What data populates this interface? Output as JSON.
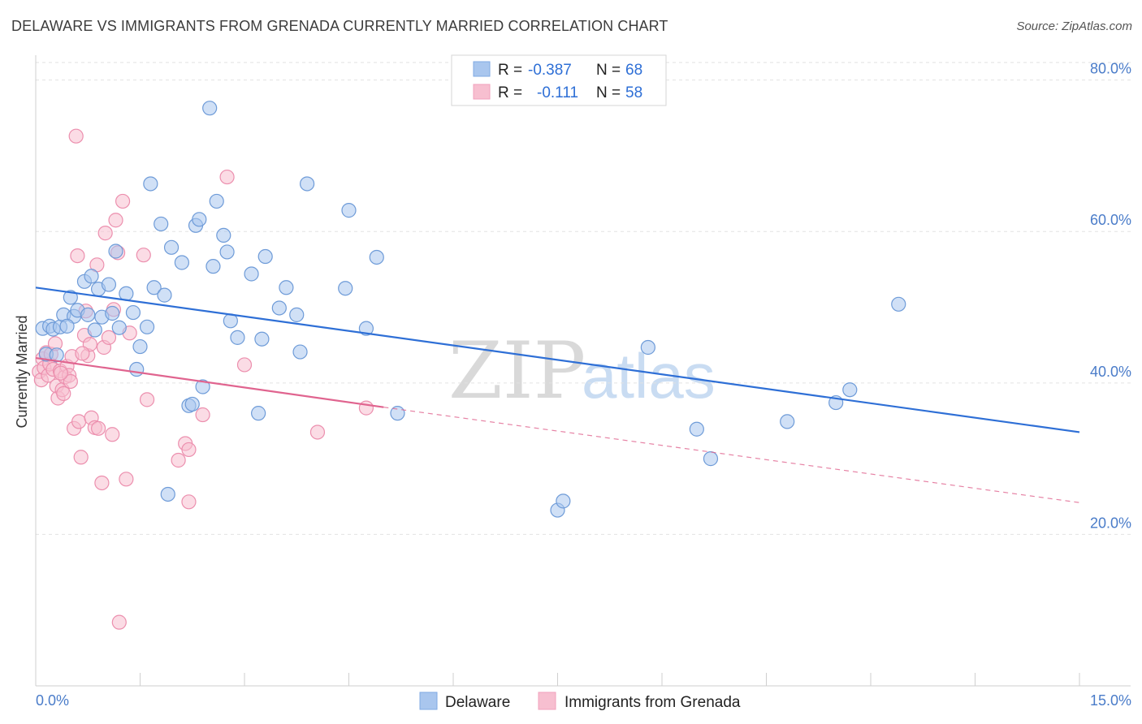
{
  "header": {
    "title": "DELAWARE VS IMMIGRANTS FROM GRENADA CURRENTLY MARRIED CORRELATION CHART",
    "source": "Source: ZipAtlas.com"
  },
  "watermark": {
    "zip": "ZIP",
    "atlas": "atlas"
  },
  "legend": {
    "r_label": "R =",
    "n_label": "N =",
    "rows": [
      {
        "name": "Delaware",
        "r": "-0.387",
        "n": "68",
        "color": "#7fa9e3"
      },
      {
        "name": "Immigrants from Grenada",
        "r": "-0.111",
        "n": "58",
        "color": "#f0a0bc"
      }
    ]
  },
  "colors": {
    "delaware_fill": "#a9c6ee",
    "delaware_stroke": "#6e9bd8",
    "delaware_line": "#2e6fd6",
    "grenada_fill": "#f7bfd0",
    "grenada_stroke": "#ec8fae",
    "grenada_line": "#e0648f",
    "axis_text": "#4a7cc9",
    "grid": "#e2e2e2"
  },
  "chart_data": {
    "type": "scatter",
    "ylabel": "Currently Married",
    "x_tick_labels": [
      "0.0%",
      "15.0%"
    ],
    "y_tick_labels": [
      "20.0%",
      "40.0%",
      "60.0%",
      "80.0%"
    ],
    "y_ticks": [
      20,
      40,
      60,
      80
    ],
    "xlim": [
      0,
      15
    ],
    "ylim": [
      0,
      82
    ],
    "grid": "horizontal dashed",
    "legend_position": "top-center",
    "series": [
      {
        "name": "Delaware",
        "points": [
          [
            0.1,
            47.2
          ],
          [
            0.15,
            43.8
          ],
          [
            0.2,
            47.5
          ],
          [
            0.25,
            47.1
          ],
          [
            0.3,
            43.7
          ],
          [
            0.35,
            47.4
          ],
          [
            0.4,
            49.0
          ],
          [
            0.5,
            51.3
          ],
          [
            0.55,
            48.8
          ],
          [
            0.6,
            49.6
          ],
          [
            0.7,
            53.4
          ],
          [
            0.75,
            49.0
          ],
          [
            0.8,
            54.1
          ],
          [
            0.85,
            47.0
          ],
          [
            0.9,
            52.4
          ],
          [
            0.95,
            48.7
          ],
          [
            1.05,
            53.0
          ],
          [
            1.1,
            49.2
          ],
          [
            1.15,
            57.4
          ],
          [
            1.2,
            47.3
          ],
          [
            1.3,
            51.8
          ],
          [
            1.4,
            49.3
          ],
          [
            1.45,
            41.8
          ],
          [
            1.5,
            44.8
          ],
          [
            1.6,
            47.4
          ],
          [
            1.65,
            66.3
          ],
          [
            1.7,
            52.6
          ],
          [
            1.8,
            61.0
          ],
          [
            1.85,
            51.6
          ],
          [
            1.9,
            25.3
          ],
          [
            1.95,
            57.9
          ],
          [
            2.1,
            55.9
          ],
          [
            2.2,
            37.0
          ],
          [
            2.25,
            37.2
          ],
          [
            2.3,
            60.8
          ],
          [
            2.35,
            61.6
          ],
          [
            2.4,
            39.5
          ],
          [
            2.5,
            76.3
          ],
          [
            2.55,
            55.4
          ],
          [
            2.6,
            64.0
          ],
          [
            2.7,
            59.5
          ],
          [
            2.75,
            57.3
          ],
          [
            2.8,
            48.2
          ],
          [
            2.9,
            46.0
          ],
          [
            3.1,
            54.4
          ],
          [
            3.2,
            36.0
          ],
          [
            3.25,
            45.8
          ],
          [
            3.3,
            56.7
          ],
          [
            3.5,
            49.9
          ],
          [
            3.6,
            52.6
          ],
          [
            3.75,
            49.0
          ],
          [
            3.8,
            44.1
          ],
          [
            3.9,
            66.3
          ],
          [
            4.5,
            62.8
          ],
          [
            4.45,
            52.5
          ],
          [
            4.75,
            47.2
          ],
          [
            4.9,
            56.6
          ],
          [
            5.2,
            36.0
          ],
          [
            7.5,
            23.2
          ],
          [
            7.58,
            24.4
          ],
          [
            8.8,
            44.7
          ],
          [
            9.5,
            33.9
          ],
          [
            9.7,
            30.0
          ],
          [
            10.8,
            34.9
          ],
          [
            11.5,
            37.4
          ],
          [
            11.7,
            39.1
          ],
          [
            12.4,
            50.4
          ],
          [
            0.45,
            47.5
          ]
        ]
      },
      {
        "name": "Immigrants from Grenada",
        "points": [
          [
            0.05,
            41.5
          ],
          [
            0.08,
            40.4
          ],
          [
            0.1,
            43.2
          ],
          [
            0.12,
            42.0
          ],
          [
            0.15,
            44.0
          ],
          [
            0.18,
            41.0
          ],
          [
            0.2,
            42.5
          ],
          [
            0.22,
            43.8
          ],
          [
            0.25,
            41.8
          ],
          [
            0.28,
            45.2
          ],
          [
            0.3,
            39.6
          ],
          [
            0.32,
            38.0
          ],
          [
            0.35,
            41.6
          ],
          [
            0.38,
            39.1
          ],
          [
            0.4,
            38.6
          ],
          [
            0.42,
            40.8
          ],
          [
            0.45,
            42.2
          ],
          [
            0.48,
            41.0
          ],
          [
            0.5,
            40.2
          ],
          [
            0.52,
            43.5
          ],
          [
            0.55,
            34.0
          ],
          [
            0.58,
            72.6
          ],
          [
            0.6,
            56.8
          ],
          [
            0.62,
            34.9
          ],
          [
            0.65,
            30.2
          ],
          [
            0.7,
            46.3
          ],
          [
            0.72,
            49.5
          ],
          [
            0.75,
            43.6
          ],
          [
            0.78,
            45.1
          ],
          [
            0.8,
            35.4
          ],
          [
            0.85,
            34.1
          ],
          [
            0.88,
            55.6
          ],
          [
            0.9,
            34.0
          ],
          [
            0.95,
            26.8
          ],
          [
            0.98,
            44.7
          ],
          [
            1.0,
            59.8
          ],
          [
            1.05,
            46.0
          ],
          [
            1.1,
            33.2
          ],
          [
            1.12,
            49.7
          ],
          [
            1.15,
            61.5
          ],
          [
            1.18,
            57.2
          ],
          [
            1.2,
            8.4
          ],
          [
            1.25,
            64.0
          ],
          [
            1.3,
            27.3
          ],
          [
            1.35,
            46.6
          ],
          [
            1.55,
            56.9
          ],
          [
            1.6,
            37.8
          ],
          [
            2.05,
            29.8
          ],
          [
            2.15,
            32.0
          ],
          [
            2.2,
            31.2
          ],
          [
            2.2,
            24.3
          ],
          [
            2.4,
            35.8
          ],
          [
            2.75,
            67.2
          ],
          [
            3.0,
            42.4
          ],
          [
            4.05,
            33.5
          ],
          [
            4.75,
            36.7
          ],
          [
            0.67,
            43.9
          ],
          [
            0.36,
            41.3
          ]
        ]
      }
    ],
    "trend_lines": [
      {
        "series": "Delaware",
        "x": [
          0,
          15
        ],
        "y": [
          52.6,
          33.5
        ]
      },
      {
        "series": "Immigrants from Grenada",
        "x": [
          0,
          5.0
        ],
        "y": [
          43.3,
          36.8
        ],
        "dashed_extension_to": [
          15,
          24.2
        ]
      }
    ]
  },
  "bottom_legend": [
    "Delaware",
    "Immigrants from Grenada"
  ]
}
